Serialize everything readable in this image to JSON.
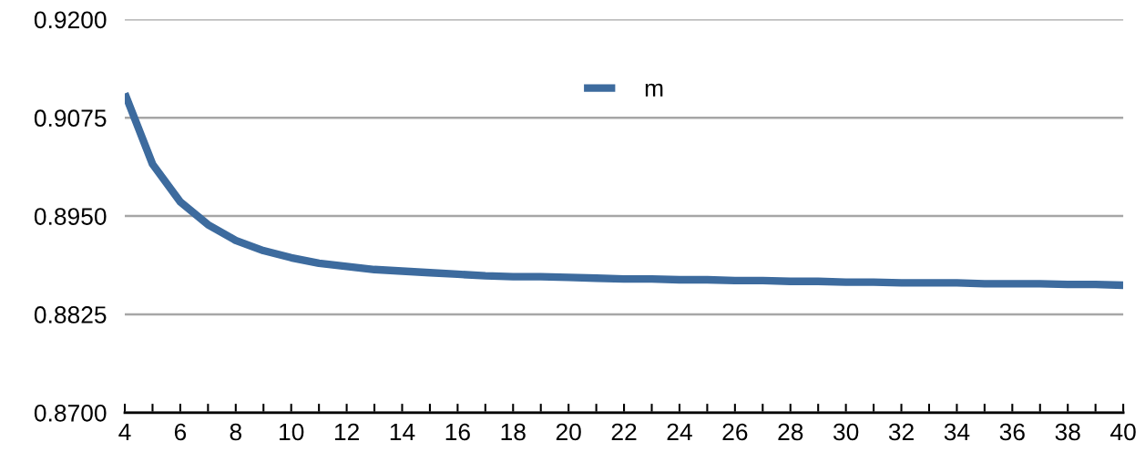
{
  "chart_data": {
    "type": "line",
    "x": [
      4,
      5,
      6,
      7,
      8,
      9,
      10,
      11,
      12,
      13,
      14,
      15,
      16,
      17,
      18,
      19,
      20,
      21,
      22,
      23,
      24,
      25,
      26,
      27,
      28,
      29,
      30,
      31,
      32,
      33,
      34,
      35,
      36,
      37,
      38,
      39,
      40
    ],
    "series": [
      {
        "name": "m",
        "color": "#3d6b9e",
        "values": [
          0.9106,
          0.9016,
          0.8968,
          0.8939,
          0.8919,
          0.8906,
          0.8897,
          0.889,
          0.8886,
          0.8882,
          0.888,
          0.8878,
          0.8876,
          0.8874,
          0.8873,
          0.8873,
          0.8872,
          0.8871,
          0.887,
          0.887,
          0.8869,
          0.8869,
          0.8868,
          0.8868,
          0.8867,
          0.8867,
          0.8866,
          0.8866,
          0.8865,
          0.8865,
          0.8865,
          0.8864,
          0.8864,
          0.8864,
          0.8863,
          0.8863,
          0.8862
        ]
      }
    ],
    "xlim": [
      4,
      40
    ],
    "xticks": [
      4,
      {
        "value": 5,
        "label": null
      },
      6,
      {
        "value": 7,
        "label": null
      },
      8,
      {
        "value": 9,
        "label": null
      },
      10,
      {
        "value": 11,
        "label": null
      },
      12,
      {
        "value": 13,
        "label": null
      },
      14,
      {
        "value": 15,
        "label": null
      },
      16,
      {
        "value": 17,
        "label": null
      },
      18,
      {
        "value": 19,
        "label": null
      },
      20,
      {
        "value": 21,
        "label": null
      },
      22,
      {
        "value": 23,
        "label": null
      },
      24,
      {
        "value": 25,
        "label": null
      },
      26,
      {
        "value": 27,
        "label": null
      },
      28,
      {
        "value": 29,
        "label": null
      },
      30,
      {
        "value": 31,
        "label": null
      },
      32,
      {
        "value": 33,
        "label": null
      },
      34,
      {
        "value": 35,
        "label": null
      },
      36,
      {
        "value": 37,
        "label": null
      },
      38,
      {
        "value": 39,
        "label": null
      },
      40
    ],
    "ylim": [
      0.87,
      0.92
    ],
    "yticks": [
      {
        "value": 0.87,
        "label": "0.8700"
      },
      {
        "value": 0.8825,
        "label": "0.8825"
      },
      {
        "value": 0.895,
        "label": "0.8950"
      },
      {
        "value": 0.9075,
        "label": "0.9075"
      },
      {
        "value": 0.92,
        "label": "0.9200"
      }
    ],
    "grid": "y",
    "legend": "top",
    "marker": "none",
    "line_style": "solid"
  }
}
